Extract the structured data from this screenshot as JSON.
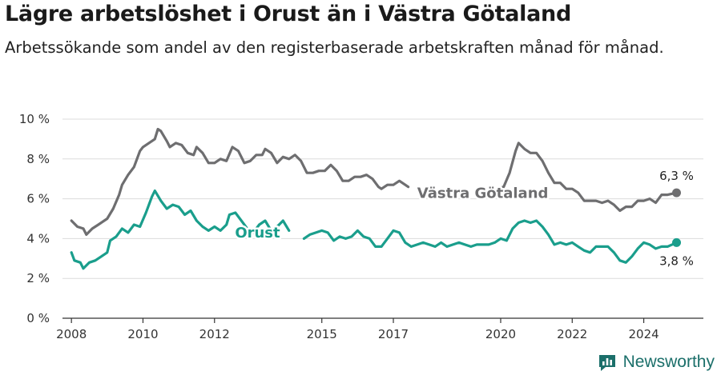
{
  "title": "Lägre arbetslöshet i Orust än i Västra Götaland",
  "subtitle": "Arbetssökande som andel av den registerbaserade arbetskraften månad för månad.",
  "brand": {
    "name": "Newsworthy"
  },
  "colors": {
    "vg": "#6e6e70",
    "orust": "#1a9e8c",
    "brand": "#1b6f6a"
  },
  "chart_data": {
    "type": "line",
    "title": "Lägre arbetslöshet i Orust än i Västra Götaland",
    "ylim": [
      0,
      10
    ],
    "yticks": [
      0,
      2,
      4,
      6,
      8,
      10
    ],
    "ytick_labels": [
      "0 %",
      "2 %",
      "4 %",
      "6 %",
      "8 %",
      "10 %"
    ],
    "xlim": [
      "2007-10",
      "2025-09"
    ],
    "xticks": [
      "2008",
      "2010",
      "2012",
      "2015",
      "2017",
      "2020",
      "2022",
      "2024"
    ],
    "grid": true,
    "series": [
      {
        "name": "Västra Götaland",
        "color": "#6e6e70",
        "end_label": "6,3 %",
        "points": [
          [
            "2008-01",
            4.9
          ],
          [
            "2008-03",
            4.6
          ],
          [
            "2008-05",
            4.5
          ],
          [
            "2008-06",
            4.2
          ],
          [
            "2008-08",
            4.5
          ],
          [
            "2008-10",
            4.7
          ],
          [
            "2009-01",
            5.0
          ],
          [
            "2009-03",
            5.5
          ],
          [
            "2009-05",
            6.2
          ],
          [
            "2009-06",
            6.7
          ],
          [
            "2009-08",
            7.2
          ],
          [
            "2009-10",
            7.6
          ],
          [
            "2009-12",
            8.4
          ],
          [
            "2010-01",
            8.6
          ],
          [
            "2010-03",
            8.8
          ],
          [
            "2010-05",
            9.0
          ],
          [
            "2010-06",
            9.5
          ],
          [
            "2010-07",
            9.4
          ],
          [
            "2010-09",
            8.9
          ],
          [
            "2010-10",
            8.6
          ],
          [
            "2010-12",
            8.8
          ],
          [
            "2011-02",
            8.7
          ],
          [
            "2011-04",
            8.3
          ],
          [
            "2011-06",
            8.2
          ],
          [
            "2011-07",
            8.6
          ],
          [
            "2011-09",
            8.3
          ],
          [
            "2011-11",
            7.8
          ],
          [
            "2012-01",
            7.8
          ],
          [
            "2012-03",
            8.0
          ],
          [
            "2012-05",
            7.9
          ],
          [
            "2012-07",
            8.6
          ],
          [
            "2012-09",
            8.4
          ],
          [
            "2012-11",
            7.8
          ],
          [
            "2013-01",
            7.9
          ],
          [
            "2013-03",
            8.2
          ],
          [
            "2013-05",
            8.2
          ],
          [
            "2013-06",
            8.5
          ],
          [
            "2013-08",
            8.3
          ],
          [
            "2013-10",
            7.8
          ],
          [
            "2013-12",
            8.1
          ],
          [
            "2014-02",
            8.0
          ],
          [
            "2014-04",
            8.2
          ],
          [
            "2014-06",
            7.9
          ],
          [
            "2014-08",
            7.3
          ],
          [
            "2014-10",
            7.3
          ],
          [
            "2014-12",
            7.4
          ],
          [
            "2015-02",
            7.4
          ],
          [
            "2015-04",
            7.7
          ],
          [
            "2015-06",
            7.4
          ],
          [
            "2015-08",
            6.9
          ],
          [
            "2015-10",
            6.9
          ],
          [
            "2015-12",
            7.1
          ],
          [
            "2016-02",
            7.1
          ],
          [
            "2016-04",
            7.2
          ],
          [
            "2016-06",
            7.0
          ],
          [
            "2016-08",
            6.6
          ],
          [
            "2016-09",
            6.5
          ],
          [
            "2016-11",
            6.7
          ],
          [
            "2017-01",
            6.7
          ],
          [
            "2017-03",
            6.9
          ],
          [
            "2017-05",
            6.7
          ],
          [
            "2017-06",
            6.6
          ],
          [
            "2019-12",
            6.5
          ],
          [
            "2020-02",
            6.6
          ],
          [
            "2020-04",
            7.3
          ],
          [
            "2020-06",
            8.4
          ],
          [
            "2020-07",
            8.8
          ],
          [
            "2020-09",
            8.5
          ],
          [
            "2020-11",
            8.3
          ],
          [
            "2021-01",
            8.3
          ],
          [
            "2021-03",
            7.9
          ],
          [
            "2021-05",
            7.3
          ],
          [
            "2021-07",
            6.8
          ],
          [
            "2021-09",
            6.8
          ],
          [
            "2021-11",
            6.5
          ],
          [
            "2022-01",
            6.5
          ],
          [
            "2022-03",
            6.3
          ],
          [
            "2022-05",
            5.9
          ],
          [
            "2022-07",
            5.9
          ],
          [
            "2022-09",
            5.9
          ],
          [
            "2022-11",
            5.8
          ],
          [
            "2023-01",
            5.9
          ],
          [
            "2023-03",
            5.7
          ],
          [
            "2023-05",
            5.4
          ],
          [
            "2023-07",
            5.6
          ],
          [
            "2023-09",
            5.6
          ],
          [
            "2023-11",
            5.9
          ],
          [
            "2024-01",
            5.9
          ],
          [
            "2024-03",
            6.0
          ],
          [
            "2024-05",
            5.8
          ],
          [
            "2024-07",
            6.2
          ],
          [
            "2024-09",
            6.2
          ],
          [
            "2024-12",
            6.3
          ]
        ]
      },
      {
        "name": "Orust",
        "color": "#1a9e8c",
        "end_label": "3,8 %",
        "points": [
          [
            "2008-01",
            3.3
          ],
          [
            "2008-02",
            2.9
          ],
          [
            "2008-04",
            2.8
          ],
          [
            "2008-05",
            2.5
          ],
          [
            "2008-07",
            2.8
          ],
          [
            "2008-09",
            2.9
          ],
          [
            "2008-11",
            3.1
          ],
          [
            "2009-01",
            3.3
          ],
          [
            "2009-02",
            3.9
          ],
          [
            "2009-04",
            4.1
          ],
          [
            "2009-06",
            4.5
          ],
          [
            "2009-08",
            4.3
          ],
          [
            "2009-10",
            4.7
          ],
          [
            "2009-12",
            4.6
          ],
          [
            "2010-02",
            5.3
          ],
          [
            "2010-04",
            6.1
          ],
          [
            "2010-05",
            6.4
          ],
          [
            "2010-07",
            5.9
          ],
          [
            "2010-09",
            5.5
          ],
          [
            "2010-11",
            5.7
          ],
          [
            "2011-01",
            5.6
          ],
          [
            "2011-03",
            5.2
          ],
          [
            "2011-05",
            5.4
          ],
          [
            "2011-07",
            4.9
          ],
          [
            "2011-09",
            4.6
          ],
          [
            "2011-11",
            4.4
          ],
          [
            "2012-01",
            4.6
          ],
          [
            "2012-03",
            4.4
          ],
          [
            "2012-05",
            4.7
          ],
          [
            "2012-06",
            5.2
          ],
          [
            "2012-08",
            5.3
          ],
          [
            "2012-10",
            4.9
          ],
          [
            "2012-12",
            4.5
          ],
          [
            "2013-02",
            4.3
          ],
          [
            "2013-04",
            4.7
          ],
          [
            "2013-06",
            4.9
          ],
          [
            "2013-08",
            4.4
          ],
          [
            "2013-10",
            4.6
          ],
          [
            "2013-12",
            4.9
          ],
          [
            "2014-02",
            4.4
          ],
          [
            "2014-07",
            4.0
          ],
          [
            "2014-09",
            4.2
          ],
          [
            "2014-11",
            4.3
          ],
          [
            "2015-01",
            4.4
          ],
          [
            "2015-03",
            4.3
          ],
          [
            "2015-05",
            3.9
          ],
          [
            "2015-07",
            4.1
          ],
          [
            "2015-09",
            4.0
          ],
          [
            "2015-11",
            4.1
          ],
          [
            "2016-01",
            4.4
          ],
          [
            "2016-03",
            4.1
          ],
          [
            "2016-05",
            4.0
          ],
          [
            "2016-07",
            3.6
          ],
          [
            "2016-09",
            3.6
          ],
          [
            "2016-11",
            4.0
          ],
          [
            "2017-01",
            4.4
          ],
          [
            "2017-03",
            4.3
          ],
          [
            "2017-05",
            3.8
          ],
          [
            "2017-07",
            3.6
          ],
          [
            "2017-09",
            3.7
          ],
          [
            "2017-11",
            3.8
          ],
          [
            "2018-01",
            3.7
          ],
          [
            "2018-03",
            3.6
          ],
          [
            "2018-05",
            3.8
          ],
          [
            "2018-07",
            3.6
          ],
          [
            "2018-09",
            3.7
          ],
          [
            "2018-11",
            3.8
          ],
          [
            "2019-01",
            3.7
          ],
          [
            "2019-03",
            3.6
          ],
          [
            "2019-05",
            3.7
          ],
          [
            "2019-07",
            3.7
          ],
          [
            "2019-09",
            3.7
          ],
          [
            "2019-11",
            3.8
          ],
          [
            "2020-01",
            4.0
          ],
          [
            "2020-03",
            3.9
          ],
          [
            "2020-05",
            4.5
          ],
          [
            "2020-07",
            4.8
          ],
          [
            "2020-09",
            4.9
          ],
          [
            "2020-11",
            4.8
          ],
          [
            "2021-01",
            4.9
          ],
          [
            "2021-03",
            4.6
          ],
          [
            "2021-05",
            4.2
          ],
          [
            "2021-07",
            3.7
          ],
          [
            "2021-09",
            3.8
          ],
          [
            "2021-11",
            3.7
          ],
          [
            "2022-01",
            3.8
          ],
          [
            "2022-03",
            3.6
          ],
          [
            "2022-05",
            3.4
          ],
          [
            "2022-07",
            3.3
          ],
          [
            "2022-09",
            3.6
          ],
          [
            "2022-11",
            3.6
          ],
          [
            "2023-01",
            3.6
          ],
          [
            "2023-03",
            3.3
          ],
          [
            "2023-05",
            2.9
          ],
          [
            "2023-07",
            2.8
          ],
          [
            "2023-09",
            3.1
          ],
          [
            "2023-11",
            3.5
          ],
          [
            "2024-01",
            3.8
          ],
          [
            "2024-03",
            3.7
          ],
          [
            "2024-05",
            3.5
          ],
          [
            "2024-07",
            3.6
          ],
          [
            "2024-09",
            3.6
          ],
          [
            "2024-12",
            3.8
          ]
        ]
      }
    ]
  }
}
